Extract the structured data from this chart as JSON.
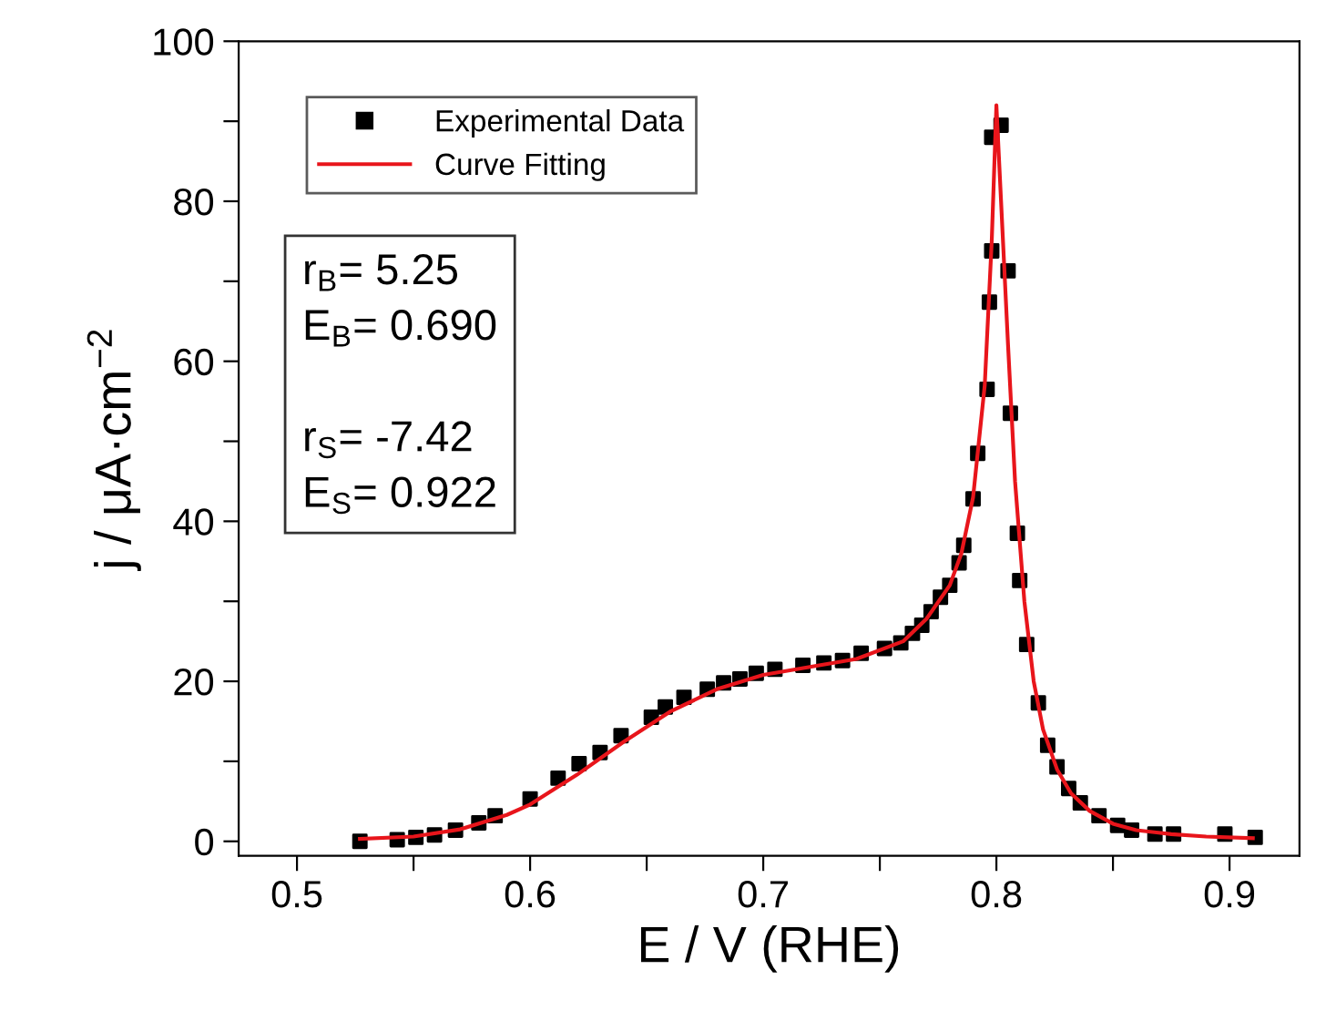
{
  "chart_data": {
    "type": "scatter",
    "xlabel": "E / V (RHE)",
    "ylabel": "j / μA·cm$^{−2}$",
    "xlim": [
      0.475,
      0.93
    ],
    "ylim": [
      -1.8,
      100
    ],
    "xticks": [
      0.5,
      {
        "value": 0.55,
        "label": null
      },
      0.6,
      {
        "value": 0.65,
        "label": null
      },
      0.7,
      {
        "value": 0.75,
        "label": null
      },
      0.8,
      {
        "value": 0.85,
        "label": null
      },
      0.9
    ],
    "yticks": [
      0,
      {
        "value": 10,
        "label": null
      },
      20,
      {
        "value": 30,
        "label": null
      },
      40,
      {
        "value": 50,
        "label": null
      },
      60,
      {
        "value": 70,
        "label": null
      },
      80,
      {
        "value": 90,
        "label": null
      },
      100
    ],
    "legend": "top left",
    "grid": false,
    "annotations": [
      "r$_{B}$= 5.25\nE$_{B}$= 0.690\n\nr$_{S}$= -7.42\nE$_{S}$= 0.922"
    ],
    "series": [
      {
        "name": "Experimental Data",
        "marker": "square",
        "color": "#000000",
        "x": [
          0.527,
          0.543,
          0.551,
          0.559,
          0.568,
          0.578,
          0.585,
          0.6,
          0.612,
          0.621,
          0.63,
          0.639,
          0.652,
          0.658,
          0.666,
          0.676,
          0.683,
          0.69,
          0.697,
          0.705,
          0.717,
          0.726,
          0.734,
          0.742,
          0.752,
          0.759,
          0.764,
          0.768,
          0.772,
          0.776,
          0.78,
          0.784,
          0.786,
          0.79,
          0.792,
          0.796,
          0.797,
          0.798,
          0.798,
          0.802,
          0.805,
          0.806,
          0.809,
          0.81,
          0.813,
          0.818,
          0.822,
          0.826,
          0.831,
          0.836,
          0.844,
          0.852,
          0.858,
          0.868,
          0.876,
          0.898,
          0.911
        ],
        "values": [
          0,
          0.2,
          0.5,
          0.8,
          1.4,
          2.3,
          3.2,
          5.3,
          7.9,
          9.7,
          11.1,
          13.2,
          15.5,
          16.8,
          18,
          19,
          19.8,
          20.3,
          21,
          21.5,
          22,
          22.3,
          22.6,
          23.5,
          24.1,
          24.8,
          26,
          27,
          28.7,
          30.5,
          32,
          34.8,
          37,
          42.8,
          48.5,
          56.5,
          67.4,
          73.8,
          88,
          89.5,
          71.3,
          53.5,
          38.5,
          32.6,
          24.6,
          17.3,
          12,
          9.3,
          6.6,
          4.8,
          3.2,
          2,
          1.4,
          0.9,
          0.9,
          0.9,
          0.5
        ]
      },
      {
        "name": "Curve Fitting",
        "type": "line",
        "marker": "none",
        "line_style": "solid",
        "color": "#e8151b",
        "x": [
          0.527,
          0.55,
          0.57,
          0.59,
          0.6,
          0.62,
          0.64,
          0.66,
          0.68,
          0.7,
          0.72,
          0.74,
          0.76,
          0.77,
          0.78,
          0.785,
          0.79,
          0.795,
          0.798,
          0.8,
          0.802,
          0.805,
          0.808,
          0.812,
          0.816,
          0.82,
          0.826,
          0.832,
          0.84,
          0.85,
          0.86,
          0.875,
          0.89,
          0.91
        ],
        "values": [
          0.3,
          0.6,
          1.5,
          3.3,
          4.6,
          8.3,
          12.4,
          16.2,
          19,
          20.8,
          21.8,
          22.8,
          25,
          27.8,
          32,
          36,
          43,
          57,
          75,
          92,
          80,
          62,
          45,
          30,
          20,
          14,
          9,
          6,
          3.8,
          2.2,
          1.4,
          0.9,
          0.6,
          0.4
        ]
      }
    ]
  }
}
